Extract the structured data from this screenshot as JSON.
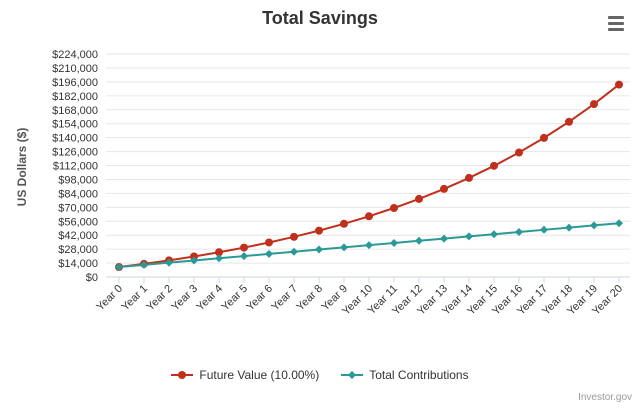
{
  "chart_data": {
    "type": "line",
    "title": "Total Savings",
    "ylabel": "US Dollars ($)",
    "xlabel": "",
    "ylim": [
      0,
      224000
    ],
    "y_ticks": [
      "$0",
      "$14,000",
      "$28,000",
      "$42,000",
      "$56,000",
      "$70,000",
      "$84,000",
      "$98,000",
      "$112,000",
      "$126,000",
      "$140,000",
      "$154,000",
      "$168,000",
      "$182,000",
      "$196,000",
      "$210,000",
      "$224,000"
    ],
    "categories": [
      "Year 0",
      "Year 1",
      "Year 2",
      "Year 3",
      "Year 4",
      "Year 5",
      "Year 6",
      "Year 7",
      "Year 8",
      "Year 9",
      "Year 10",
      "Year 11",
      "Year 12",
      "Year 13",
      "Year 14",
      "Year 15",
      "Year 16",
      "Year 17",
      "Year 18",
      "Year 19",
      "Year 20"
    ],
    "grid": true,
    "legend": "bottom",
    "series": [
      {
        "name": "Future Value (10.00%)",
        "color": "#c0301c",
        "marker": "circle",
        "values": [
          10000,
          13200,
          16720,
          20592,
          24851,
          29536,
          34690,
          40359,
          46595,
          53454,
          61000,
          69300,
          78430,
          88473,
          99520,
          111672,
          125039,
          139743,
          155917,
          173709,
          193280
        ]
      },
      {
        "name": "Total Contributions",
        "color": "#2a9a96",
        "marker": "diamond",
        "values": [
          10000,
          12200,
          14400,
          16600,
          18800,
          21000,
          23200,
          25400,
          27600,
          29800,
          32000,
          34200,
          36400,
          38600,
          40800,
          43000,
          45200,
          47400,
          49600,
          51800,
          54000
        ]
      }
    ]
  },
  "ui": {
    "menu_icon": "hamburger-menu-icon",
    "credits": "Investor.gov"
  }
}
